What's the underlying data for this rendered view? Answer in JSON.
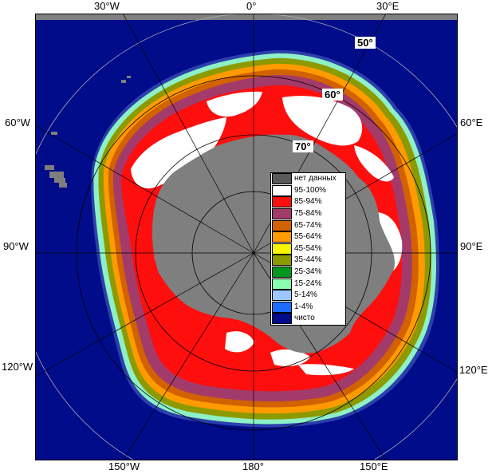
{
  "map": {
    "lon_labels_top": [
      "30°W",
      "0°",
      "30°E"
    ],
    "lon_labels_bottom": [
      "150°W",
      "180°",
      "150°E"
    ],
    "lon_labels_left": [
      "60°W",
      "90°W",
      "120°W"
    ],
    "lon_labels_right": [
      "60°E",
      "90°E",
      "120°E"
    ],
    "lat_labels": [
      "50°",
      "60°",
      "70°"
    ],
    "colors": {
      "ocean": "#000c8a",
      "land": "#7f7f7f",
      "frame": "#808080",
      "grid": "#b0b0b0"
    }
  },
  "legend": {
    "items": [
      {
        "label": "нет данных",
        "color": "#595959"
      },
      {
        "label": "95-100%",
        "color": "#ffffff"
      },
      {
        "label": "85-94%",
        "color": "#ff0e0e"
      },
      {
        "label": "75-84%",
        "color": "#a33b6a"
      },
      {
        "label": "65-74%",
        "color": "#d26200"
      },
      {
        "label": "55-64%",
        "color": "#ff9a00"
      },
      {
        "label": "45-54%",
        "color": "#f6f600"
      },
      {
        "label": "35-44%",
        "color": "#8c9a00"
      },
      {
        "label": "25-34%",
        "color": "#00971e"
      },
      {
        "label": "15-24%",
        "color": "#88ffb0"
      },
      {
        "label": "5-14%",
        "color": "#9cc8ff"
      },
      {
        "label": "1-4%",
        "color": "#1e6cff"
      },
      {
        "label": "чисто",
        "color": "#000c8a"
      }
    ]
  }
}
